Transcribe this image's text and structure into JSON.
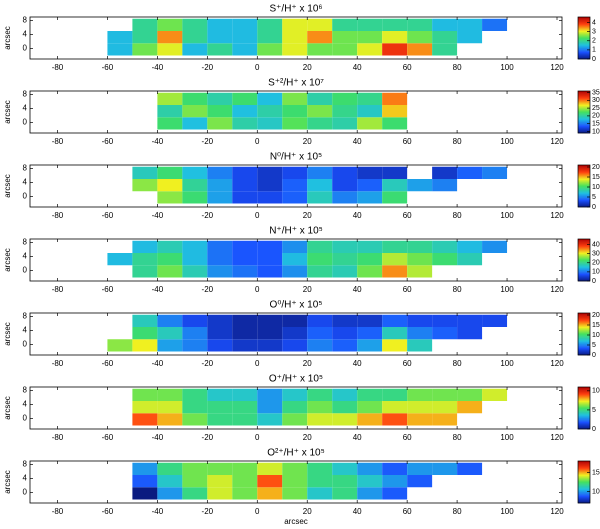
{
  "colormap": [
    "#0a1a80",
    "#1a50ff",
    "#20c0e0",
    "#40e060",
    "#f0f020",
    "#ff4010",
    "#b00000"
  ],
  "chart_data": [
    {
      "type": "heatmap",
      "title": "S⁺/H⁺ x 10⁶",
      "ylabel": "arcsec",
      "xlim": [
        -91,
        122
      ],
      "ylim": [
        -3,
        9
      ],
      "xticks": [
        -80,
        -60,
        -40,
        -20,
        0,
        20,
        40,
        60,
        80,
        100,
        120
      ],
      "yticks": [
        0,
        4,
        8
      ],
      "xbins": [
        -60,
        -50,
        -40,
        -30,
        -20,
        -10,
        0,
        10,
        20,
        30,
        40,
        50,
        60,
        70,
        80,
        90,
        100,
        110,
        120
      ],
      "ybins": [
        -2,
        1.5,
        5,
        8.5
      ],
      "clim": [
        0,
        4.6
      ],
      "cticks": [
        0,
        1,
        2,
        3,
        4
      ],
      "values": [
        [
          1.5,
          2.5,
          3,
          1.5,
          2,
          1.5,
          2.5,
          3,
          2.5,
          2.5,
          3,
          4,
          3.5,
          2,
          null,
          null,
          null,
          null
        ],
        [
          1.5,
          2,
          3.5,
          2,
          1.5,
          1.5,
          2,
          3,
          3.5,
          2.5,
          2.5,
          3,
          2.5,
          2,
          1.5,
          null,
          null,
          null
        ],
        [
          null,
          2,
          2.5,
          2,
          1.5,
          1.5,
          2,
          3,
          3,
          2,
          2,
          2,
          2,
          1.5,
          1.5,
          1,
          null,
          null
        ]
      ]
    },
    {
      "type": "heatmap",
      "title": "S⁺²/H⁺ x 10⁷",
      "ylabel": "arcsec",
      "xlim": [
        -91,
        122
      ],
      "ylim": [
        -3,
        9
      ],
      "xticks": [
        -80,
        -60,
        -40,
        -20,
        0,
        20,
        40,
        60,
        80,
        100,
        120
      ],
      "yticks": [
        0,
        4,
        8
      ],
      "xbins": [
        -60,
        -50,
        -40,
        -30,
        -20,
        -10,
        0,
        10,
        20,
        30,
        40,
        50,
        60,
        70,
        80,
        90,
        100,
        110,
        120
      ],
      "ybins": [
        -2,
        1.5,
        5,
        8.5
      ],
      "clim": [
        9,
        36
      ],
      "cticks": [
        10,
        15,
        20,
        25,
        30,
        35
      ],
      "values": [
        [
          null,
          null,
          22,
          18,
          24,
          20,
          19,
          23,
          21,
          20,
          25,
          22,
          null,
          null,
          null,
          null,
          null,
          null
        ],
        [
          null,
          null,
          20,
          24,
          22,
          18,
          20,
          22,
          24,
          21,
          19,
          28,
          null,
          null,
          null,
          null,
          null,
          null
        ],
        [
          null,
          null,
          25,
          22,
          20,
          22,
          18,
          24,
          20,
          22,
          21,
          30,
          null,
          null,
          null,
          null,
          null,
          null
        ]
      ]
    },
    {
      "type": "heatmap",
      "title": "N⁰/H⁺ x 10⁵",
      "ylabel": "arcsec",
      "xlim": [
        -91,
        122
      ],
      "ylim": [
        -3,
        9
      ],
      "xticks": [
        -80,
        -60,
        -40,
        -20,
        0,
        20,
        40,
        60,
        80,
        100,
        120
      ],
      "yticks": [
        0,
        4,
        8
      ],
      "xbins": [
        -60,
        -50,
        -40,
        -30,
        -20,
        -10,
        0,
        10,
        20,
        30,
        40,
        50,
        60,
        70,
        80,
        90,
        100,
        110,
        120
      ],
      "ybins": [
        -2,
        1.5,
        5,
        8.5
      ],
      "clim": [
        0,
        21
      ],
      "cticks": [
        0,
        5,
        10,
        15,
        20
      ],
      "values": [
        [
          null,
          null,
          12,
          10,
          6,
          3,
          3,
          4,
          8,
          5,
          6,
          10,
          null,
          null,
          null,
          null,
          null,
          null
        ],
        [
          null,
          12,
          14,
          9,
          6,
          3,
          2,
          4,
          7,
          3,
          4,
          8,
          6,
          5,
          null,
          null,
          null,
          null
        ],
        [
          null,
          8,
          10,
          7,
          5,
          3,
          2,
          3,
          5,
          3,
          2,
          2,
          null,
          2,
          4,
          5,
          null,
          null
        ]
      ]
    },
    {
      "type": "heatmap",
      "title": "N⁺/H⁺ x 10⁵",
      "ylabel": "arcsec",
      "xlim": [
        -91,
        122
      ],
      "ylim": [
        -3,
        9
      ],
      "xticks": [
        -80,
        -60,
        -40,
        -20,
        0,
        20,
        40,
        60,
        80,
        100,
        120
      ],
      "yticks": [
        0,
        4,
        8
      ],
      "xbins": [
        -60,
        -50,
        -40,
        -30,
        -20,
        -10,
        0,
        10,
        20,
        30,
        40,
        50,
        60,
        70,
        80,
        90,
        100,
        110,
        120
      ],
      "ybins": [
        -2,
        1.5,
        5,
        8.5
      ],
      "clim": [
        0,
        46
      ],
      "cticks": [
        0,
        10,
        20,
        30,
        40
      ],
      "values": [
        [
          null,
          20,
          25,
          18,
          12,
          10,
          8,
          12,
          20,
          18,
          25,
          35,
          28,
          null,
          null,
          null,
          null,
          null
        ],
        [
          15,
          20,
          22,
          15,
          10,
          8,
          8,
          15,
          22,
          20,
          22,
          28,
          25,
          22,
          18,
          null,
          null,
          null
        ],
        [
          null,
          15,
          18,
          15,
          10,
          8,
          8,
          12,
          20,
          18,
          18,
          20,
          20,
          18,
          15,
          12,
          null,
          null
        ]
      ]
    },
    {
      "type": "heatmap",
      "title": "O⁰/H⁺ x 10⁵",
      "ylabel": "arcsec",
      "xlim": [
        -91,
        122
      ],
      "ylim": [
        -3,
        9
      ],
      "xticks": [
        -80,
        -60,
        -40,
        -20,
        0,
        20,
        40,
        60,
        80,
        100,
        120
      ],
      "yticks": [
        0,
        4,
        8
      ],
      "xbins": [
        -60,
        -50,
        -40,
        -30,
        -20,
        -10,
        0,
        10,
        20,
        30,
        40,
        50,
        60,
        70,
        80,
        90,
        100,
        110,
        120
      ],
      "ybins": [
        -2,
        1.5,
        5,
        8.5
      ],
      "clim": [
        0,
        21
      ],
      "cticks": [
        0,
        5,
        10,
        15,
        20
      ],
      "values": [
        [
          12,
          14,
          6,
          5,
          3,
          2,
          2,
          3,
          5,
          4,
          6,
          14,
          8,
          null,
          null,
          null,
          null,
          null
        ],
        [
          null,
          10,
          8,
          5,
          2,
          1,
          1,
          2,
          4,
          3,
          4,
          8,
          5,
          4,
          3,
          null,
          null,
          null
        ],
        [
          null,
          8,
          5,
          3,
          2,
          1,
          1,
          1,
          3,
          2,
          2,
          4,
          3,
          3,
          3,
          3,
          null,
          null
        ]
      ]
    },
    {
      "type": "heatmap",
      "title": "O⁺/H⁺ x 10⁵",
      "ylabel": "arcsec",
      "xlim": [
        -91,
        122
      ],
      "ylim": [
        -3,
        9
      ],
      "xticks": [
        -80,
        -60,
        -40,
        -20,
        0,
        20,
        40,
        60,
        80,
        100,
        120
      ],
      "yticks": [
        0,
        4,
        8
      ],
      "xbins": [
        -60,
        -50,
        -40,
        -30,
        -20,
        -10,
        0,
        10,
        20,
        30,
        40,
        50,
        60,
        70,
        80,
        90,
        100,
        110,
        120
      ],
      "ybins": [
        -2,
        1.5,
        5,
        8.5
      ],
      "clim": [
        0,
        11
      ],
      "cticks": [
        0,
        5,
        10
      ],
      "values": [
        [
          null,
          9,
          8,
          6,
          5,
          5,
          4,
          6,
          7,
          7,
          8,
          9,
          8,
          8,
          null,
          null,
          null,
          null
        ],
        [
          null,
          7,
          7,
          5,
          5,
          5,
          3,
          5,
          6,
          5,
          6,
          7,
          7,
          7,
          8,
          null,
          null,
          null
        ],
        [
          null,
          6,
          6,
          5,
          4,
          4,
          3,
          4,
          5,
          4,
          5,
          5,
          6,
          6,
          6,
          7,
          null,
          null
        ]
      ]
    },
    {
      "type": "heatmap",
      "title": "O²⁺/H⁺ x 10⁵",
      "ylabel": "arcsec",
      "xlabel": "arcsec",
      "xlim": [
        -91,
        122
      ],
      "ylim": [
        -3,
        9
      ],
      "xticks": [
        -80,
        -60,
        -40,
        -20,
        0,
        20,
        40,
        60,
        80,
        100,
        120
      ],
      "yticks": [
        0,
        4,
        8
      ],
      "xbins": [
        -60,
        -50,
        -40,
        -30,
        -20,
        -10,
        0,
        10,
        20,
        30,
        40,
        50,
        60,
        70,
        80,
        90,
        100,
        110,
        120
      ],
      "ybins": [
        -2,
        1.5,
        5,
        8.5
      ],
      "clim": [
        7,
        18
      ],
      "cticks": [
        10,
        15
      ],
      "values": [
        [
          null,
          7,
          10,
          12,
          14,
          13,
          15,
          13,
          11,
          12,
          10,
          9,
          null,
          null,
          null,
          null,
          null,
          null
        ],
        [
          null,
          9,
          11,
          13,
          14,
          13,
          16,
          13,
          12,
          12,
          11,
          10,
          9,
          null,
          null,
          null,
          null,
          null
        ],
        [
          null,
          10,
          12,
          13,
          13,
          13,
          14,
          13,
          12,
          11,
          10,
          9,
          10,
          10,
          9,
          null,
          null,
          null
        ]
      ]
    }
  ]
}
